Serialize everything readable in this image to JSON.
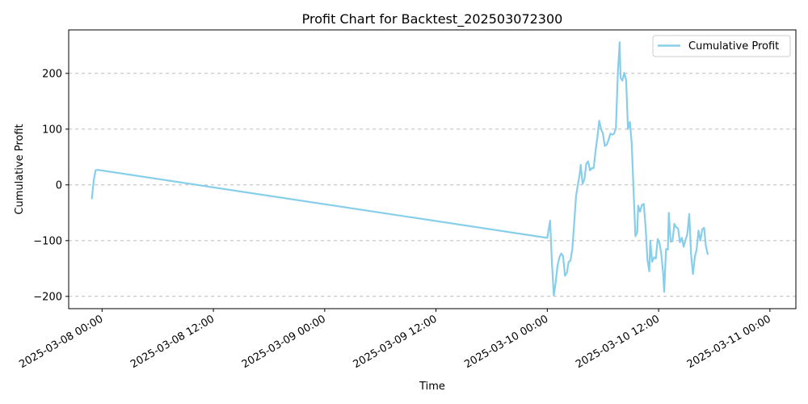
{
  "chart_data": {
    "type": "line",
    "title": "Profit Chart for Backtest_202503072300",
    "xlabel": "Time",
    "ylabel": "Cumulative Profit",
    "x_type": "datetime",
    "xlim": [
      "2025-03-07T20:24",
      "2025-03-11T02:48"
    ],
    "ylim": [
      -222,
      278
    ],
    "x_ticks": [
      {
        "value": "2025-03-08T00:00",
        "label": "2025-03-08 00:00"
      },
      {
        "value": "2025-03-08T12:00",
        "label": "2025-03-08 12:00"
      },
      {
        "value": "2025-03-09T00:00",
        "label": "2025-03-09 00:00"
      },
      {
        "value": "2025-03-09T12:00",
        "label": "2025-03-09 12:00"
      },
      {
        "value": "2025-03-10T00:00",
        "label": "2025-03-10 00:00"
      },
      {
        "value": "2025-03-10T12:00",
        "label": "2025-03-10 12:00"
      },
      {
        "value": "2025-03-11T00:00",
        "label": "2025-03-11 00:00"
      }
    ],
    "y_ticks": [
      -200,
      -100,
      0,
      100,
      200
    ],
    "grid": "horizontal dashed",
    "legend_position": "top-right",
    "series": [
      {
        "name": "Cumulative Profit",
        "color": "#87CEEB",
        "points": [
          [
            "2025-03-07T22:54",
            -24
          ],
          [
            "2025-03-07T23:06",
            8
          ],
          [
            "2025-03-07T23:18",
            26
          ],
          [
            "2025-03-07T23:30",
            27
          ],
          [
            "2025-03-10T00:00",
            -95
          ],
          [
            "2025-03-10T00:18",
            -64
          ],
          [
            "2025-03-10T00:30",
            -140
          ],
          [
            "2025-03-10T00:42",
            -198
          ],
          [
            "2025-03-10T00:54",
            -175
          ],
          [
            "2025-03-10T01:06",
            -145
          ],
          [
            "2025-03-10T01:18",
            -130
          ],
          [
            "2025-03-10T01:30",
            -123
          ],
          [
            "2025-03-10T01:42",
            -128
          ],
          [
            "2025-03-10T01:54",
            -163
          ],
          [
            "2025-03-10T02:06",
            -158
          ],
          [
            "2025-03-10T02:18",
            -138
          ],
          [
            "2025-03-10T02:30",
            -136
          ],
          [
            "2025-03-10T02:42",
            -115
          ],
          [
            "2025-03-10T02:54",
            -70
          ],
          [
            "2025-03-10T03:06",
            -20
          ],
          [
            "2025-03-10T03:18",
            0
          ],
          [
            "2025-03-10T03:30",
            20
          ],
          [
            "2025-03-10T03:36",
            36
          ],
          [
            "2025-03-10T03:48",
            2
          ],
          [
            "2025-03-10T04:00",
            10
          ],
          [
            "2025-03-10T04:12",
            38
          ],
          [
            "2025-03-10T04:24",
            42
          ],
          [
            "2025-03-10T04:36",
            26
          ],
          [
            "2025-03-10T04:48",
            30
          ],
          [
            "2025-03-10T05:00",
            30
          ],
          [
            "2025-03-10T05:12",
            60
          ],
          [
            "2025-03-10T05:24",
            85
          ],
          [
            "2025-03-10T05:36",
            115
          ],
          [
            "2025-03-10T05:48",
            100
          ],
          [
            "2025-03-10T06:00",
            92
          ],
          [
            "2025-03-10T06:12",
            70
          ],
          [
            "2025-03-10T06:24",
            72
          ],
          [
            "2025-03-10T06:36",
            80
          ],
          [
            "2025-03-10T06:48",
            92
          ],
          [
            "2025-03-10T07:00",
            90
          ],
          [
            "2025-03-10T07:12",
            92
          ],
          [
            "2025-03-10T07:24",
            102
          ],
          [
            "2025-03-10T07:36",
            200
          ],
          [
            "2025-03-10T07:48",
            256
          ],
          [
            "2025-03-10T07:54",
            192
          ],
          [
            "2025-03-10T08:06",
            187
          ],
          [
            "2025-03-10T08:18",
            201
          ],
          [
            "2025-03-10T08:30",
            188
          ],
          [
            "2025-03-10T08:42",
            100
          ],
          [
            "2025-03-10T08:54",
            113
          ],
          [
            "2025-03-10T09:06",
            75
          ],
          [
            "2025-03-10T09:18",
            -10
          ],
          [
            "2025-03-10T09:30",
            -92
          ],
          [
            "2025-03-10T09:42",
            -85
          ],
          [
            "2025-03-10T09:48",
            -37
          ],
          [
            "2025-03-10T10:00",
            -48
          ],
          [
            "2025-03-10T10:12",
            -36
          ],
          [
            "2025-03-10T10:24",
            -34
          ],
          [
            "2025-03-10T10:36",
            -75
          ],
          [
            "2025-03-10T10:48",
            -135
          ],
          [
            "2025-03-10T11:00",
            -155
          ],
          [
            "2025-03-10T11:06",
            -100
          ],
          [
            "2025-03-10T11:18",
            -138
          ],
          [
            "2025-03-10T11:30",
            -130
          ],
          [
            "2025-03-10T11:42",
            -132
          ],
          [
            "2025-03-10T11:54",
            -97
          ],
          [
            "2025-03-10T12:06",
            -105
          ],
          [
            "2025-03-10T12:18",
            -125
          ],
          [
            "2025-03-10T12:30",
            -160
          ],
          [
            "2025-03-10T12:36",
            -192
          ],
          [
            "2025-03-10T12:48",
            -115
          ],
          [
            "2025-03-10T13:00",
            -116
          ],
          [
            "2025-03-10T13:06",
            -50
          ],
          [
            "2025-03-10T13:18",
            -102
          ],
          [
            "2025-03-10T13:30",
            -101
          ],
          [
            "2025-03-10T13:42",
            -70
          ],
          [
            "2025-03-10T13:54",
            -76
          ],
          [
            "2025-03-10T14:06",
            -78
          ],
          [
            "2025-03-10T14:18",
            -103
          ],
          [
            "2025-03-10T14:30",
            -95
          ],
          [
            "2025-03-10T14:42",
            -111
          ],
          [
            "2025-03-10T14:54",
            -99
          ],
          [
            "2025-03-10T15:06",
            -88
          ],
          [
            "2025-03-10T15:18",
            -52
          ],
          [
            "2025-03-10T15:30",
            -125
          ],
          [
            "2025-03-10T15:42",
            -160
          ],
          [
            "2025-03-10T15:54",
            -130
          ],
          [
            "2025-03-10T16:06",
            -115
          ],
          [
            "2025-03-10T16:18",
            -82
          ],
          [
            "2025-03-10T16:30",
            -100
          ],
          [
            "2025-03-10T16:42",
            -80
          ],
          [
            "2025-03-10T16:54",
            -77
          ],
          [
            "2025-03-10T17:06",
            -110
          ],
          [
            "2025-03-10T17:18",
            -124
          ]
        ]
      }
    ]
  }
}
